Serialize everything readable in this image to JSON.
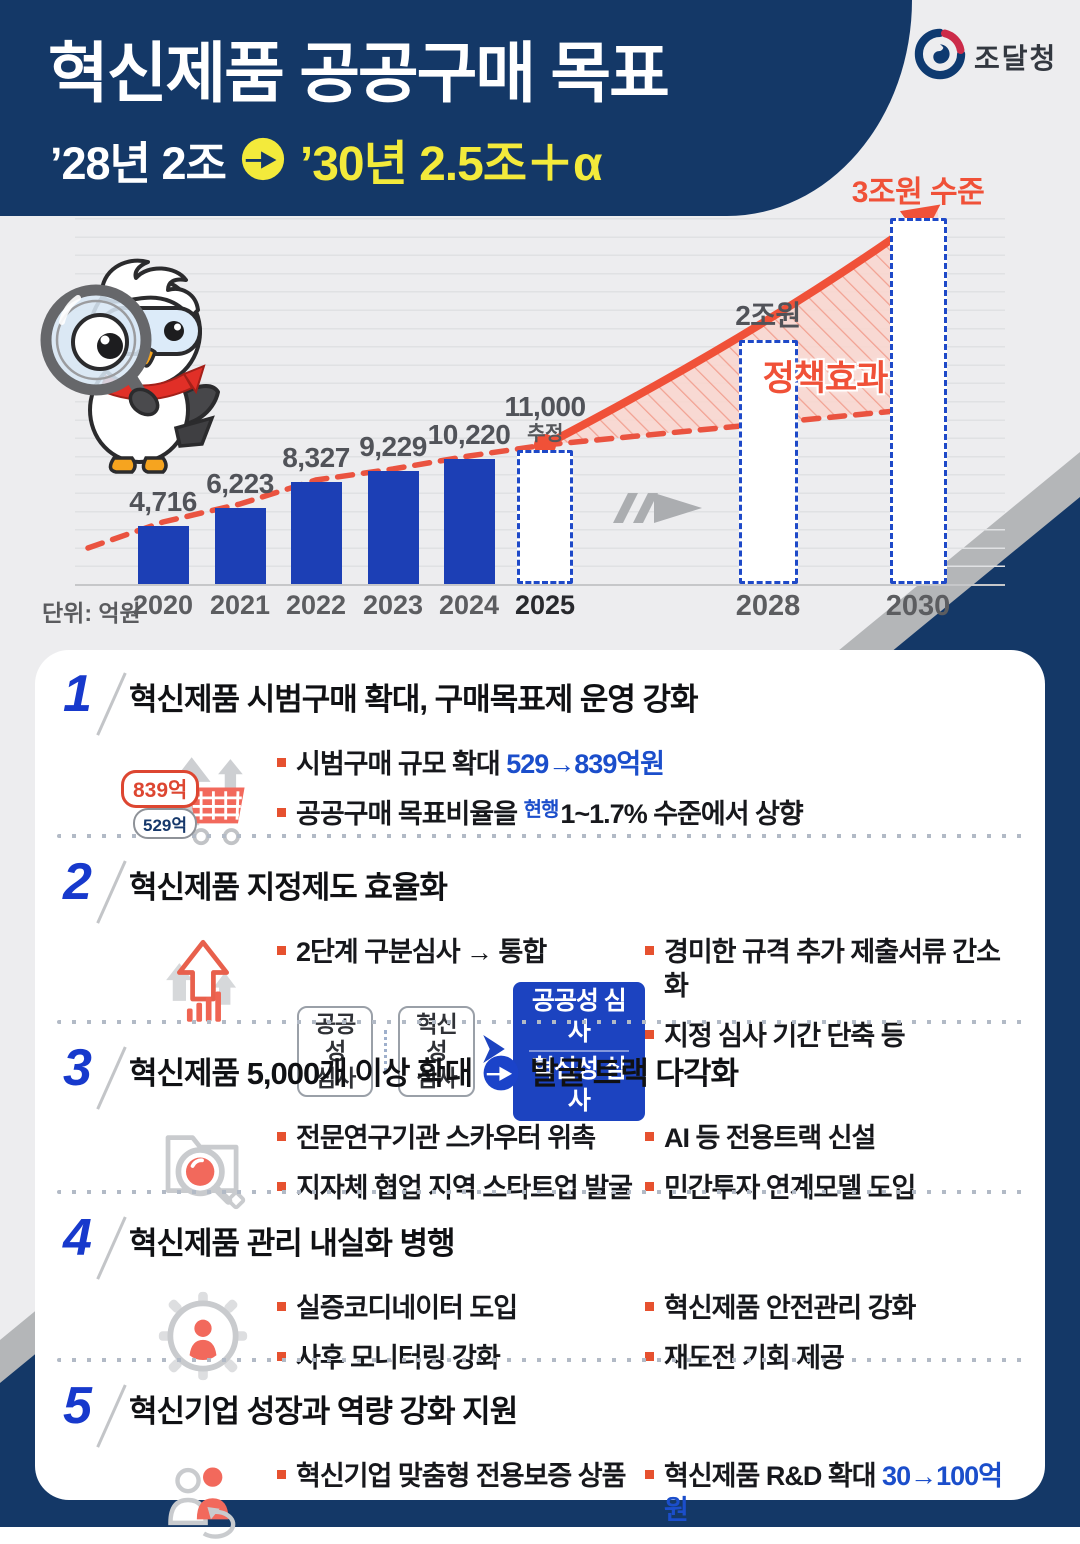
{
  "header": {
    "title": "혁신제품 공공구매 목표",
    "subtitle_from": "’28년 2조",
    "subtitle_to": "’30년 2.5조＋α",
    "agency": "조달청"
  },
  "chart_data": {
    "type": "bar",
    "unit": "단위: 억원",
    "categories": [
      "2020",
      "2021",
      "2022",
      "2023",
      "2024",
      "2025",
      "2028",
      "2030"
    ],
    "values": [
      4716,
      6223,
      8327,
      9229,
      10220,
      11000,
      20000,
      30000
    ],
    "bars": [
      {
        "year": "2020",
        "value": 4716,
        "label": "4,716",
        "style": "solid"
      },
      {
        "year": "2021",
        "value": 6223,
        "label": "6,223",
        "style": "solid"
      },
      {
        "year": "2022",
        "value": 8327,
        "label": "8,327",
        "style": "solid"
      },
      {
        "year": "2023",
        "value": 9229,
        "label": "9,229",
        "style": "solid"
      },
      {
        "year": "2024",
        "value": 10220,
        "label": "10,220",
        "style": "solid"
      },
      {
        "year": "2025",
        "value": 11000,
        "label": "11,000",
        "note": "추정",
        "style": "dashed",
        "year_bold": true
      },
      {
        "year": "2028",
        "value": 20000,
        "label": "2조원",
        "style": "dashed"
      },
      {
        "year": "2030",
        "value": 30000,
        "label": "3조원 수준",
        "style": "dashed",
        "label_color": "orange"
      }
    ],
    "annotation": "정책효과",
    "ylim": [
      0,
      32000
    ],
    "grid": true,
    "legend_position": "none"
  },
  "sections": {
    "s1": {
      "number": "1",
      "title": "혁신제품 시범구매 확대, 구매목표제 운영 강화",
      "badge_new": "839억",
      "badge_old": "529억",
      "b1_pre": "시범구매 규모 확대 ",
      "b1_em": "529→839억원",
      "b2_pre": "공공구매 목표비율을 ",
      "b2_sup": "현행",
      "b2_post": "1~1.7% 수준에서 상향"
    },
    "s2": {
      "number": "2",
      "title": "혁신제품 지정제도 효율화",
      "b1": "2단계 구분심사 → 통합",
      "box1_line1": "공공성",
      "box1_line2": "심사",
      "box2_line1": "혁신성",
      "box2_line2": "심사",
      "merged_line1": "공공성 심사",
      "merged_line2": "혁신성 심사",
      "r1": "경미한 규격 추가 제출서류 간소화",
      "r2": "지정 심사 기간 단축 등"
    },
    "s3": {
      "number": "3",
      "title_left": "혁신제품 5,000개 이상 확대",
      "title_right": "발굴 트랙 다각화",
      "l1": "전문연구기관 스카우터 위촉",
      "l2": "지자체 협업 지역 스타트업 발굴",
      "r1": "AI 등 전용트랙 신설",
      "r2": "민간투자 연계모델 도입"
    },
    "s4": {
      "number": "4",
      "title": "혁신제품 관리 내실화 병행",
      "l1": "실증코디네이터 도입",
      "l2": "사후 모니터링 강화",
      "r1": "혁신제품 안전관리 강화",
      "r2": "재도전 기회 제공"
    },
    "s5": {
      "number": "5",
      "title": "혁신기업 성장과 역량 강화 지원",
      "b1": "혁신기업 맞춤형 전용보증 상품",
      "b2_pre": "혁신제품 R&D 확대 ",
      "b2_em": "30→100억원"
    }
  },
  "colors": {
    "navy": "#143867",
    "bar_blue": "#1c3fb5",
    "dashed_bar_blue": "#1e49c8",
    "accent_orange": "#f05138",
    "accent_yellow": "#f3ea3b",
    "number_blue": "#1739cc",
    "emphasis_blue": "#1b4ecb",
    "bullet_orange": "#e6512f"
  },
  "icons": {
    "subtitle_arrow": "circle-arrow-right",
    "section3_title_arrow": "circle-arrow-right",
    "s1": "shopping-cart",
    "s2": "growth-arrows",
    "s3": "folder-magnifier",
    "s4": "gear-person",
    "s5": "people-cycle",
    "chart_mid": "fast-forward-arrow",
    "mascot": "bird-with-magnifier"
  }
}
